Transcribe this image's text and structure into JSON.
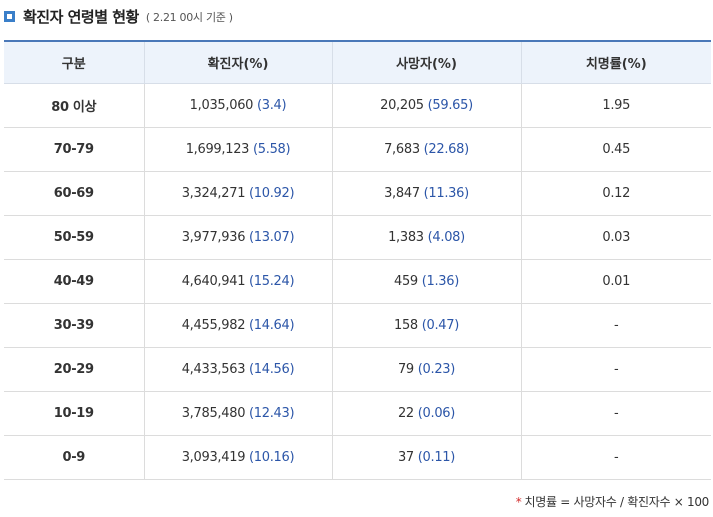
{
  "header": {
    "title": "확진자 연령별 현황",
    "subtitle": "( 2.21 00시 기준 )"
  },
  "table": {
    "columns": [
      "구분",
      "확진자(%)",
      "사망자(%)",
      "치명률(%)"
    ],
    "rows": [
      {
        "age": "80 이상",
        "cases": "1,035,060",
        "cases_pct": "(3.4)",
        "deaths": "20,205",
        "deaths_pct": "(59.65)",
        "fatality": "1.95"
      },
      {
        "age": "70-79",
        "cases": "1,699,123",
        "cases_pct": "(5.58)",
        "deaths": "7,683",
        "deaths_pct": "(22.68)",
        "fatality": "0.45"
      },
      {
        "age": "60-69",
        "cases": "3,324,271",
        "cases_pct": "(10.92)",
        "deaths": "3,847",
        "deaths_pct": "(11.36)",
        "fatality": "0.12"
      },
      {
        "age": "50-59",
        "cases": "3,977,936",
        "cases_pct": "(13.07)",
        "deaths": "1,383",
        "deaths_pct": "(4.08)",
        "fatality": "0.03"
      },
      {
        "age": "40-49",
        "cases": "4,640,941",
        "cases_pct": "(15.24)",
        "deaths": "459",
        "deaths_pct": "(1.36)",
        "fatality": "0.01"
      },
      {
        "age": "30-39",
        "cases": "4,455,982",
        "cases_pct": "(14.64)",
        "deaths": "158",
        "deaths_pct": "(0.47)",
        "fatality": "-"
      },
      {
        "age": "20-29",
        "cases": "4,433,563",
        "cases_pct": "(14.56)",
        "deaths": "79",
        "deaths_pct": "(0.23)",
        "fatality": "-"
      },
      {
        "age": "10-19",
        "cases": "3,785,480",
        "cases_pct": "(12.43)",
        "deaths": "22",
        "deaths_pct": "(0.06)",
        "fatality": "-"
      },
      {
        "age": "0-9",
        "cases": "3,093,419",
        "cases_pct": "(10.16)",
        "deaths": "37",
        "deaths_pct": "(0.11)",
        "fatality": "-"
      }
    ]
  },
  "footnote": {
    "marker": "*",
    "text": "치명률 = 사망자수 / 확진자수 × 100"
  },
  "colors": {
    "accent": "#3a7fc9",
    "header_bg": "#edf3fb",
    "value_blue": "#2c56a8",
    "footnote_star": "#d22b2b"
  },
  "icons": {
    "title_marker": "square-icon"
  }
}
